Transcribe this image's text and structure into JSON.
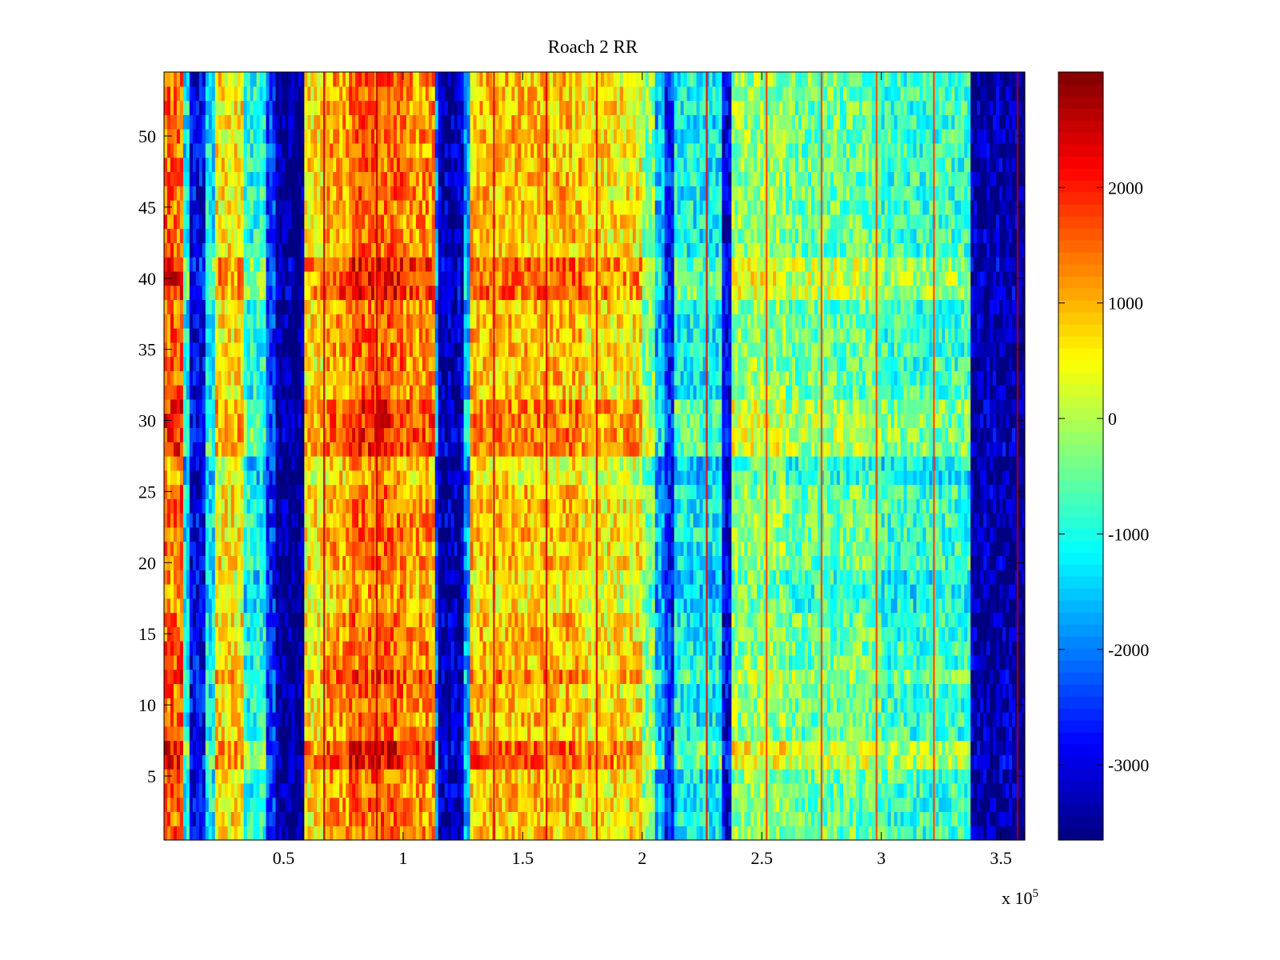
{
  "chart_data": {
    "type": "heatmap",
    "title": "Roach 2 RR",
    "xlabel": "",
    "ylabel": "",
    "x_multiplier_label": {
      "base": "x 10",
      "exponent": "5"
    },
    "xlim": [
      0,
      3.6
    ],
    "ylim": [
      0.5,
      54.5
    ],
    "x_ticks": [
      {
        "value": 0.5,
        "label": "0.5"
      },
      {
        "value": 1,
        "label": "1"
      },
      {
        "value": 1.5,
        "label": "1.5"
      },
      {
        "value": 2,
        "label": "2"
      },
      {
        "value": 2.5,
        "label": "2.5"
      },
      {
        "value": 3,
        "label": "3"
      },
      {
        "value": 3.5,
        "label": "3.5"
      }
    ],
    "y_ticks": [
      {
        "value": 5,
        "label": "5"
      },
      {
        "value": 10,
        "label": "10"
      },
      {
        "value": 15,
        "label": "15"
      },
      {
        "value": 20,
        "label": "20"
      },
      {
        "value": 25,
        "label": "25"
      },
      {
        "value": 30,
        "label": "30"
      },
      {
        "value": 35,
        "label": "35"
      },
      {
        "value": 40,
        "label": "40"
      },
      {
        "value": 45,
        "label": "45"
      },
      {
        "value": 50,
        "label": "50"
      }
    ],
    "rows": 54,
    "colorbar": {
      "colormap": "jet",
      "range": [
        -3650,
        3000
      ],
      "ticks": [
        {
          "value": 2000,
          "label": "2000"
        },
        {
          "value": 1000,
          "label": "1000"
        },
        {
          "value": 0,
          "label": "0"
        },
        {
          "value": -1000,
          "label": "-1000"
        },
        {
          "value": -2000,
          "label": "-2000"
        },
        {
          "value": -3000,
          "label": "-3000"
        }
      ]
    },
    "column_bands": [
      {
        "x0": 0.0,
        "x1": 0.08,
        "mean": 1500
      },
      {
        "x0": 0.08,
        "x1": 0.11,
        "mean": -1200
      },
      {
        "x0": 0.11,
        "x1": 0.17,
        "mean": -2900
      },
      {
        "x0": 0.17,
        "x1": 0.21,
        "mean": -1200
      },
      {
        "x0": 0.21,
        "x1": 0.33,
        "mean": 600
      },
      {
        "x0": 0.33,
        "x1": 0.43,
        "mean": -1000
      },
      {
        "x0": 0.43,
        "x1": 0.46,
        "mean": -2500
      },
      {
        "x0": 0.46,
        "x1": 0.59,
        "mean": -3500
      },
      {
        "x0": 0.59,
        "x1": 0.68,
        "mean": 600
      },
      {
        "x0": 0.68,
        "x1": 0.78,
        "mean": 1100
      },
      {
        "x0": 0.78,
        "x1": 1.0,
        "mean": 1500
      },
      {
        "x0": 1.0,
        "x1": 1.13,
        "mean": 1200
      },
      {
        "x0": 1.13,
        "x1": 1.15,
        "mean": -2000
      },
      {
        "x0": 1.15,
        "x1": 1.25,
        "mean": -3300
      },
      {
        "x0": 1.25,
        "x1": 1.28,
        "mean": -1800
      },
      {
        "x0": 1.28,
        "x1": 1.42,
        "mean": 900
      },
      {
        "x0": 1.42,
        "x1": 1.75,
        "mean": 900
      },
      {
        "x0": 1.75,
        "x1": 2.0,
        "mean": 600
      },
      {
        "x0": 2.0,
        "x1": 2.06,
        "mean": -300
      },
      {
        "x0": 2.06,
        "x1": 2.09,
        "mean": -1600
      },
      {
        "x0": 2.09,
        "x1": 2.14,
        "mean": -2600
      },
      {
        "x0": 2.14,
        "x1": 2.23,
        "mean": -1100
      },
      {
        "x0": 2.23,
        "x1": 2.33,
        "mean": -1200
      },
      {
        "x0": 2.33,
        "x1": 2.37,
        "mean": -3000
      },
      {
        "x0": 2.37,
        "x1": 2.6,
        "mean": -200
      },
      {
        "x0": 2.6,
        "x1": 3.0,
        "mean": -500
      },
      {
        "x0": 3.0,
        "x1": 3.38,
        "mean": -800
      },
      {
        "x0": 3.38,
        "x1": 3.57,
        "mean": -3400
      },
      {
        "x0": 3.57,
        "x1": 3.6,
        "mean": -3600
      }
    ],
    "vertical_streaks": [
      {
        "x": 0.55,
        "value": -3600
      },
      {
        "x": 0.67,
        "value": 2600
      },
      {
        "x": 0.89,
        "value": 2600
      },
      {
        "x": 1.38,
        "value": 2400
      },
      {
        "x": 1.6,
        "value": 2500
      },
      {
        "x": 1.81,
        "value": 2400
      },
      {
        "x": 2.27,
        "value": 2200
      },
      {
        "x": 2.52,
        "value": 1800
      },
      {
        "x": 2.75,
        "value": 1800
      },
      {
        "x": 2.98,
        "value": 1800
      },
      {
        "x": 3.22,
        "value": 1800
      },
      {
        "x": 3.57,
        "value": 2800
      }
    ]
  }
}
